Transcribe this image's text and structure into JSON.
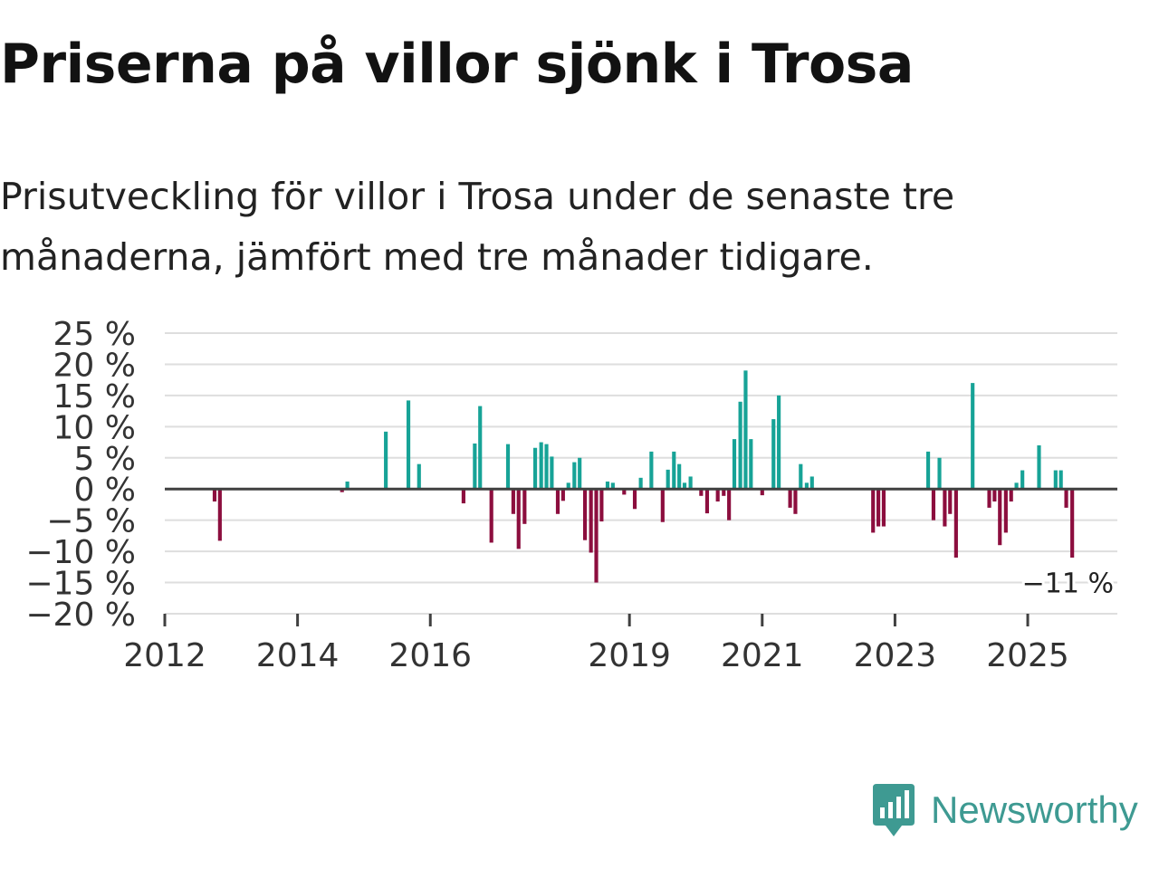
{
  "title": "Priserna på villor sjönk i Trosa",
  "subtitle": "Prisutveckling för villor i Trosa under de senaste tre månaderna, jämfört med tre månader tidigare.",
  "brand": {
    "name": "Newsworthy",
    "color": "#3e9a92",
    "icon": "newsworthy-logo-icon"
  },
  "colors": {
    "positive": "#17a397",
    "negative": "#8c0e3e",
    "zero_line": "#404040",
    "grid": "#dedede",
    "text": "#333333"
  },
  "chart_data": {
    "type": "bar",
    "title": "Priserna på villor sjönk i Trosa",
    "xlabel": "",
    "ylabel": "",
    "ylim": [
      -20,
      25
    ],
    "y_ticks": [
      25,
      20,
      15,
      10,
      5,
      0,
      -5,
      -10,
      -15,
      -20
    ],
    "y_tick_labels": [
      "25 %",
      "20 %",
      "15 %",
      "10 %",
      "5 %",
      "0 %",
      "−5 %",
      "−10 %",
      "−15 %",
      "−20 %"
    ],
    "x_range": [
      2012.0,
      2026.35
    ],
    "x_ticks": [
      2012,
      2014,
      2016,
      2019,
      2021,
      2023,
      2025
    ],
    "x_tick_labels": [
      "2012",
      "2014",
      "2016",
      "2019",
      "2021",
      "2023",
      "2025"
    ],
    "last_value_label": "−11 %",
    "series": [
      {
        "name": "Prisutveckling",
        "points": [
          {
            "x": 2012.75,
            "y": -2
          },
          {
            "x": 2012.83,
            "y": -8.3
          },
          {
            "x": 2014.67,
            "y": -0.5
          },
          {
            "x": 2014.75,
            "y": 1.2
          },
          {
            "x": 2015.33,
            "y": 9.2
          },
          {
            "x": 2015.67,
            "y": 14.2
          },
          {
            "x": 2015.83,
            "y": 4
          },
          {
            "x": 2016.5,
            "y": -2.3
          },
          {
            "x": 2016.67,
            "y": 7.3
          },
          {
            "x": 2016.75,
            "y": 13.3
          },
          {
            "x": 2016.92,
            "y": -8.6
          },
          {
            "x": 2017.17,
            "y": 7.2
          },
          {
            "x": 2017.25,
            "y": -4
          },
          {
            "x": 2017.33,
            "y": -9.6
          },
          {
            "x": 2017.42,
            "y": -5.6
          },
          {
            "x": 2017.58,
            "y": 6.6
          },
          {
            "x": 2017.67,
            "y": 7.5
          },
          {
            "x": 2017.75,
            "y": 7.2
          },
          {
            "x": 2017.83,
            "y": 5.2
          },
          {
            "x": 2017.92,
            "y": -4
          },
          {
            "x": 2018.0,
            "y": -1.9
          },
          {
            "x": 2018.08,
            "y": 1
          },
          {
            "x": 2018.17,
            "y": 4.3
          },
          {
            "x": 2018.25,
            "y": 5
          },
          {
            "x": 2018.33,
            "y": -8.2
          },
          {
            "x": 2018.42,
            "y": -10.2
          },
          {
            "x": 2018.5,
            "y": -15
          },
          {
            "x": 2018.58,
            "y": -5.2
          },
          {
            "x": 2018.67,
            "y": 1.2
          },
          {
            "x": 2018.75,
            "y": 1
          },
          {
            "x": 2018.92,
            "y": -0.9
          },
          {
            "x": 2019.08,
            "y": -3.2
          },
          {
            "x": 2019.17,
            "y": 1.8
          },
          {
            "x": 2019.33,
            "y": 6
          },
          {
            "x": 2019.5,
            "y": -5.3
          },
          {
            "x": 2019.58,
            "y": 3.1
          },
          {
            "x": 2019.67,
            "y": 6
          },
          {
            "x": 2019.75,
            "y": 4
          },
          {
            "x": 2019.83,
            "y": 1
          },
          {
            "x": 2019.92,
            "y": 2
          },
          {
            "x": 2020.08,
            "y": -1.1
          },
          {
            "x": 2020.17,
            "y": -3.9
          },
          {
            "x": 2020.33,
            "y": -2
          },
          {
            "x": 2020.42,
            "y": -1.1
          },
          {
            "x": 2020.5,
            "y": -5
          },
          {
            "x": 2020.58,
            "y": 8
          },
          {
            "x": 2020.67,
            "y": 14
          },
          {
            "x": 2020.75,
            "y": 19
          },
          {
            "x": 2020.83,
            "y": 8
          },
          {
            "x": 2021.0,
            "y": -1
          },
          {
            "x": 2021.17,
            "y": 11.2
          },
          {
            "x": 2021.25,
            "y": 15
          },
          {
            "x": 2021.42,
            "y": -3
          },
          {
            "x": 2021.5,
            "y": -4
          },
          {
            "x": 2021.58,
            "y": 4
          },
          {
            "x": 2021.67,
            "y": 1
          },
          {
            "x": 2021.75,
            "y": 2
          },
          {
            "x": 2022.67,
            "y": -7
          },
          {
            "x": 2022.75,
            "y": -6
          },
          {
            "x": 2022.83,
            "y": -6
          },
          {
            "x": 2023.5,
            "y": 6
          },
          {
            "x": 2023.58,
            "y": -5
          },
          {
            "x": 2023.67,
            "y": 5
          },
          {
            "x": 2023.75,
            "y": -6
          },
          {
            "x": 2023.83,
            "y": -4
          },
          {
            "x": 2023.92,
            "y": -11
          },
          {
            "x": 2024.17,
            "y": 17
          },
          {
            "x": 2024.42,
            "y": -3
          },
          {
            "x": 2024.5,
            "y": -2
          },
          {
            "x": 2024.58,
            "y": -9
          },
          {
            "x": 2024.67,
            "y": -7
          },
          {
            "x": 2024.75,
            "y": -2
          },
          {
            "x": 2024.83,
            "y": 1
          },
          {
            "x": 2024.92,
            "y": 3
          },
          {
            "x": 2025.17,
            "y": 7
          },
          {
            "x": 2025.42,
            "y": 3
          },
          {
            "x": 2025.5,
            "y": 3
          },
          {
            "x": 2025.58,
            "y": -3
          },
          {
            "x": 2025.67,
            "y": -11
          }
        ]
      }
    ]
  }
}
